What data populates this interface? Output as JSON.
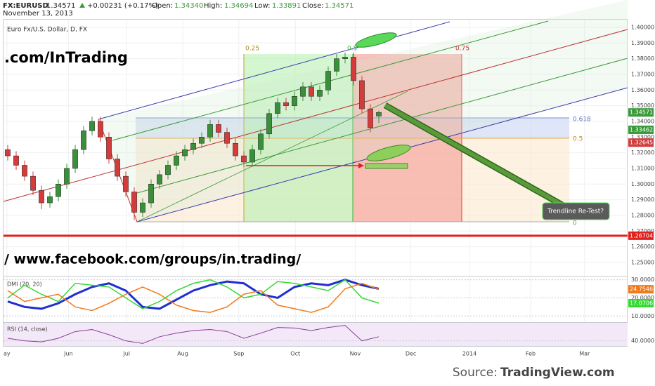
{
  "chart_data": {
    "type": "candlestick",
    "header": {
      "symbol": "FX:EURUSD",
      "last": "1.34571",
      "change": "+0.00231 (+0.17%)",
      "open_label": "Open:",
      "open": "1.34340",
      "high_label": "High:",
      "high": "1.34694",
      "low_label": "Low:",
      "low": "1.33891",
      "close_label": "Close:",
      "close": "1.34571",
      "date": "November 13, 2013"
    },
    "title": "Euro Fx/U.S. Dollar, D, FX",
    "watermarks": [
      ".com/InTrading",
      "/ www.facebook.com/groups/in.trading/"
    ],
    "annotation": "Trendline Re-Test?",
    "fib_time_labels": [
      "0.25",
      "0.5",
      "0.75"
    ],
    "fib_levels": [
      "0.618",
      "0.5",
      "0"
    ],
    "source_label": "Source:",
    "source": "TradingView.com",
    "up_color": "#3a8f3a",
    "down_color": "#d23c3c",
    "x": [
      0,
      1,
      2,
      3,
      4,
      5,
      6,
      7,
      8,
      9,
      10,
      11,
      12,
      13,
      14,
      15,
      16,
      17,
      18,
      19,
      20,
      21,
      22,
      23,
      24,
      25,
      26,
      27,
      28,
      29,
      30,
      31,
      32,
      33,
      34,
      35,
      36,
      37,
      38,
      39,
      40,
      41,
      42,
      43,
      44
    ],
    "open": [
      1.322,
      1.318,
      1.312,
      1.305,
      1.296,
      1.288,
      1.292,
      1.3,
      1.31,
      1.322,
      1.334,
      1.34,
      1.33,
      1.316,
      1.305,
      1.295,
      1.282,
      1.288,
      1.3,
      1.306,
      1.312,
      1.318,
      1.322,
      1.326,
      1.33,
      1.338,
      1.333,
      1.326,
      1.318,
      1.314,
      1.322,
      1.332,
      1.345,
      1.352,
      1.35,
      1.356,
      1.362,
      1.356,
      1.36,
      1.372,
      1.38,
      1.381,
      1.366,
      1.348,
      1.3434
    ],
    "high": [
      1.325,
      1.321,
      1.315,
      1.308,
      1.299,
      1.295,
      1.303,
      1.313,
      1.325,
      1.337,
      1.343,
      1.343,
      1.333,
      1.319,
      1.308,
      1.298,
      1.291,
      1.303,
      1.309,
      1.315,
      1.321,
      1.325,
      1.329,
      1.333,
      1.341,
      1.341,
      1.336,
      1.329,
      1.321,
      1.325,
      1.335,
      1.348,
      1.355,
      1.355,
      1.359,
      1.365,
      1.365,
      1.363,
      1.375,
      1.383,
      1.384,
      1.384,
      1.369,
      1.351,
      1.34694
    ],
    "low": [
      1.315,
      1.309,
      1.302,
      1.293,
      1.284,
      1.285,
      1.289,
      1.297,
      1.307,
      1.319,
      1.331,
      1.327,
      1.313,
      1.302,
      1.292,
      1.277,
      1.279,
      1.285,
      1.297,
      1.303,
      1.309,
      1.315,
      1.319,
      1.323,
      1.327,
      1.33,
      1.323,
      1.315,
      1.311,
      1.311,
      1.319,
      1.329,
      1.342,
      1.347,
      1.347,
      1.353,
      1.353,
      1.353,
      1.357,
      1.369,
      1.377,
      1.363,
      1.345,
      1.333,
      1.33891
    ],
    "close": [
      1.318,
      1.312,
      1.305,
      1.296,
      1.288,
      1.292,
      1.3,
      1.31,
      1.322,
      1.334,
      1.34,
      1.33,
      1.316,
      1.305,
      1.295,
      1.282,
      1.288,
      1.3,
      1.306,
      1.312,
      1.318,
      1.322,
      1.326,
      1.33,
      1.338,
      1.333,
      1.326,
      1.318,
      1.314,
      1.322,
      1.332,
      1.345,
      1.352,
      1.35,
      1.356,
      1.362,
      1.356,
      1.36,
      1.372,
      1.38,
      1.381,
      1.366,
      1.348,
      1.336,
      1.34571
    ],
    "xlim": [
      -0.5,
      73.5
    ],
    "xticks": [
      {
        "value": -0.1,
        "label": "ay"
      },
      {
        "value": 7.2,
        "label": "Jun"
      },
      {
        "value": 14.1,
        "label": "Jul"
      },
      {
        "value": 20.75,
        "label": "Aug"
      },
      {
        "value": 27.4,
        "label": "Sep"
      },
      {
        "value": 34.1,
        "label": "Oct"
      },
      {
        "value": 41.2,
        "label": "Nov"
      },
      {
        "value": 47.8,
        "label": "Dec"
      },
      {
        "value": 54.75,
        "label": "2014"
      },
      {
        "value": 62,
        "label": "Feb"
      },
      {
        "value": 68.4,
        "label": "Mar"
      }
    ],
    "ylim": [
      1.2419,
      1.4085
    ],
    "yticks": [
      {
        "value": 1.4,
        "label": "1.40000"
      },
      {
        "value": 1.39,
        "label": "1.39000"
      },
      {
        "value": 1.38,
        "label": "1.38000"
      },
      {
        "value": 1.37,
        "label": "1.37000"
      },
      {
        "value": 1.36,
        "label": "1.36000"
      },
      {
        "value": 1.35,
        "label": "1.35000"
      },
      {
        "value": 1.34,
        "label": "1.34000"
      },
      {
        "value": 1.33,
        "label": "1.33000"
      },
      {
        "value": 1.32,
        "label": "1.32000"
      },
      {
        "value": 1.31,
        "label": "1.31000"
      },
      {
        "value": 1.3,
        "label": "1.30000"
      },
      {
        "value": 1.29,
        "label": "1.29000"
      },
      {
        "value": 1.28,
        "label": "1.28000"
      },
      {
        "value": 1.27,
        "label": "1.27000"
      },
      {
        "value": 1.26,
        "label": "1.26000"
      },
      {
        "value": 1.25,
        "label": "1.25000"
      }
    ],
    "price_markers": [
      {
        "value": 1.33462,
        "color": "#3a9a3a"
      },
      {
        "value": 1.32645,
        "color": "#d23c3c"
      },
      {
        "value": 1.26704,
        "color": "#e0201c"
      }
    ],
    "grid": true,
    "indicators": [
      {
        "title": "DMI (20, 20)",
        "x": [
          0,
          2,
          4,
          6,
          8,
          10,
          12,
          14,
          16,
          18,
          20,
          22,
          24,
          26,
          28,
          30,
          32,
          34,
          36,
          38,
          40,
          42,
          44
        ],
        "ylim": [
          7,
          31
        ],
        "yticks": [
          {
            "value": 30,
            "label": "30.0000"
          },
          {
            "value": 20,
            "label": "20.0000"
          },
          {
            "value": 10,
            "label": "10.0000"
          }
        ],
        "series": [
          {
            "color": "#1f2fd0",
            "width": 3,
            "values": [
              18,
              15,
              14,
              17,
              22,
              26,
              28,
              24,
              15,
              14,
              19,
              24,
              27,
              29,
              28,
              22,
              20,
              26,
              28,
              27,
              30,
              27,
              25
            ]
          },
          {
            "color": "#35d835",
            "width": 1.5,
            "values": [
              20,
              27,
              22,
              18,
              28,
              27,
              26,
              20,
              14,
              18,
              24,
              28,
              30,
              26,
              20,
              22,
              29,
              28,
              26,
              24,
              30,
              20,
              17.0706
            ],
            "marker": true
          },
          {
            "color": "#f07a1a",
            "width": 1.5,
            "values": [
              24,
              18,
              20,
              22,
              15,
              13,
              17,
              22,
              26,
              22,
              16,
              13,
              12,
              15,
              22,
              24,
              16,
              14,
              12,
              15,
              25,
              28,
              24.7546
            ],
            "marker": true
          }
        ]
      },
      {
        "title": "RSI (14, close)",
        "x": [
          0,
          2,
          4,
          6,
          8,
          10,
          12,
          14,
          16,
          18,
          20,
          22,
          24,
          26,
          28,
          30,
          32,
          34,
          36,
          38,
          40,
          42,
          44
        ],
        "ylim": [
          30,
          75
        ],
        "yticks": [
          {
            "value": 40,
            "label": "40.0000"
          }
        ],
        "series": [
          {
            "color": "#8a3c9a",
            "width": 1,
            "values": [
              45,
              40,
              38,
              45,
              58,
              62,
              52,
              40,
              35,
              48,
              55,
              60,
              62,
              58,
              45,
              55,
              66,
              65,
              60,
              66,
              70,
              40,
              48
            ]
          }
        ]
      }
    ]
  }
}
